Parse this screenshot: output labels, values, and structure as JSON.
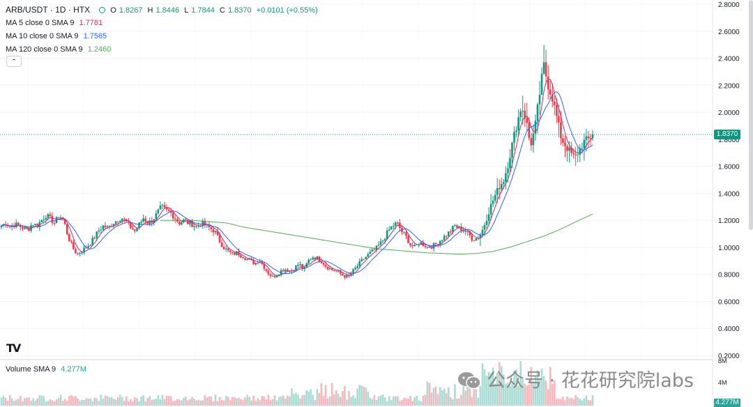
{
  "header": {
    "pair": "ARB/USDT · 1D · HTX",
    "open_label": "O",
    "open": "1.8267",
    "high_label": "H",
    "high": "1.8446",
    "low_label": "L",
    "low": "1.7844",
    "close_label": "C",
    "close": "1.8370",
    "change": "+0.0101 (+0.55%)"
  },
  "indicators": [
    {
      "label": "MA 5 close 0 SMA 9",
      "value": "1.7781",
      "color": "#e91e63"
    },
    {
      "label": "MA 10 close 0 SMA 9",
      "value": "1.7565",
      "color": "#2962ff"
    },
    {
      "label": "MA 120 close 0 SMA 9",
      "value": "1.2460",
      "color": "#4caf50"
    }
  ],
  "volume_indicator": {
    "label": "Volume SMA 9",
    "value": "4.277M",
    "color": "#26a69a"
  },
  "collapse_glyph": "⌃",
  "tv_logo": "TV",
  "watermark": "公众号 · 花花研究院labs",
  "last_price_tag": "1.8370",
  "volume_tag": "4.277M",
  "colors": {
    "up": "#089981",
    "down": "#f23645",
    "vol_up": "#a8dcd4",
    "vol_down": "#f7b7bc",
    "ma5": "#e91e63",
    "ma10": "#2962ff",
    "ma120": "#4caf50"
  },
  "chart_data": {
    "type": "candlestick",
    "price_axis_ticks": [
      "2.8000",
      "2.6000",
      "2.4000",
      "2.2000",
      "2.0000",
      "1.8000",
      "1.6000",
      "1.4000",
      "1.2000",
      "1.0000",
      "0.8000",
      "0.6000",
      "0.4000",
      "0.2000"
    ],
    "volume_axis_ticks": [
      "8M",
      "4M"
    ],
    "ylim": [
      0.2,
      2.8
    ],
    "last_close": 1.837,
    "close_series": [
      1.16,
      1.18,
      1.15,
      1.17,
      1.16,
      1.14,
      1.13,
      1.18,
      1.16,
      1.2,
      1.24,
      1.21,
      1.18,
      1.24,
      1.2,
      1.08,
      1.0,
      0.95,
      0.97,
      1.0,
      1.03,
      1.08,
      1.13,
      1.16,
      1.14,
      1.18,
      1.2,
      1.22,
      1.19,
      1.15,
      1.12,
      1.17,
      1.22,
      1.18,
      1.2,
      1.25,
      1.3,
      1.27,
      1.26,
      1.22,
      1.18,
      1.2,
      1.18,
      1.17,
      1.15,
      1.18,
      1.16,
      1.14,
      1.12,
      1.05,
      1.0,
      0.97,
      0.95,
      0.96,
      0.94,
      0.92,
      0.9,
      0.88,
      0.91,
      0.86,
      0.81,
      0.78,
      0.8,
      0.83,
      0.84,
      0.82,
      0.85,
      0.88,
      0.83,
      0.9,
      0.93,
      0.92,
      0.9,
      0.86,
      0.84,
      0.83,
      0.81,
      0.79,
      0.78,
      0.82,
      0.86,
      0.9,
      0.93,
      0.96,
      0.98,
      1.02,
      1.06,
      1.12,
      1.16,
      1.18,
      1.12,
      1.08,
      1.02,
      1.0,
      1.04,
      1.02,
      1.0,
      1.01,
      1.03,
      1.06,
      1.09,
      1.12,
      1.16,
      1.14,
      1.13,
      1.1,
      1.06,
      1.07,
      1.11,
      1.2,
      1.3,
      1.38,
      1.45,
      1.5,
      1.62,
      1.78,
      1.92,
      2.05,
      1.95,
      1.75,
      1.88,
      2.12,
      2.35,
      2.2,
      2.1,
      1.95,
      1.8,
      1.75,
      1.7,
      1.66,
      1.72,
      1.78,
      1.8,
      1.837
    ],
    "ma120_series": [
      1.2,
      1.2,
      1.2,
      1.19,
      1.18,
      1.15,
      1.13,
      1.11,
      1.09,
      1.07,
      1.05,
      1.03,
      1.01,
      0.99,
      0.98,
      0.97,
      0.96,
      0.955,
      0.95,
      0.955,
      0.97,
      1.0,
      1.04,
      1.08,
      1.13,
      1.19,
      1.246
    ]
  }
}
